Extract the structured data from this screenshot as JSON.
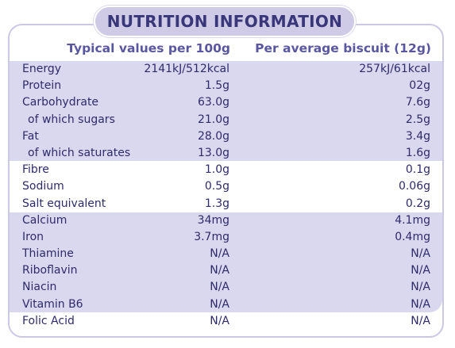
{
  "title": "NUTRITION INFORMATION",
  "headers": {
    "per100g": "Typical values per 100g",
    "perBiscuit": "Per average biscuit (12g)"
  },
  "rows": [
    {
      "name": "Energy",
      "per100g": "2141kJ/512kcal",
      "perBiscuit": "257kJ/61kcal",
      "sub": false
    },
    {
      "name": "Protein",
      "per100g": "1.5g",
      "perBiscuit": "02g",
      "sub": false
    },
    {
      "name": "Carbohydrate",
      "per100g": "63.0g",
      "perBiscuit": "7.6g",
      "sub": false
    },
    {
      "name": "of which sugars",
      "per100g": "21.0g",
      "perBiscuit": "2.5g",
      "sub": true
    },
    {
      "name": "Fat",
      "per100g": "28.0g",
      "perBiscuit": "3.4g",
      "sub": false
    },
    {
      "name": "of which saturates",
      "per100g": "13.0g",
      "perBiscuit": "1.6g",
      "sub": true
    },
    {
      "name": "Fibre",
      "per100g": "1.0g",
      "perBiscuit": "0.1g",
      "sub": false
    },
    {
      "name": "Sodium",
      "per100g": "0.5g",
      "perBiscuit": "0.06g",
      "sub": false
    },
    {
      "name": "Salt equivalent",
      "per100g": "1.3g",
      "perBiscuit": "0.2g",
      "sub": false
    },
    {
      "name": "Calcium",
      "per100g": "34mg",
      "perBiscuit": "4.1mg",
      "sub": false
    },
    {
      "name": "Iron",
      "per100g": "3.7mg",
      "perBiscuit": "0.4mg",
      "sub": false
    },
    {
      "name": "Thiamine",
      "per100g": "N/A",
      "perBiscuit": "N/A",
      "sub": false
    },
    {
      "name": "Riboflavin",
      "per100g": "N/A",
      "perBiscuit": "N/A",
      "sub": false
    },
    {
      "name": "Niacin",
      "per100g": "N/A",
      "perBiscuit": "N/A",
      "sub": false
    },
    {
      "name": "Vitamin B6",
      "per100g": "N/A",
      "perBiscuit": "N/A",
      "sub": false
    },
    {
      "name": "Folic Acid",
      "per100g": "N/A",
      "perBiscuit": "N/A",
      "sub": false
    }
  ],
  "colors": {
    "band": "#dad8ee",
    "text": "#2e2b6a",
    "header": "#5a57a0",
    "border": "#cbc8e3"
  }
}
